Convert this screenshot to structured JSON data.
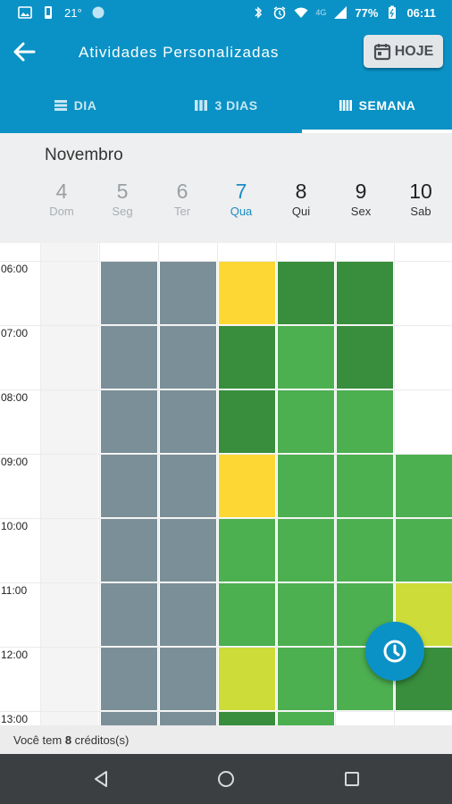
{
  "status_bar": {
    "temperature": "21°",
    "network": "4G",
    "battery": "77%",
    "time": "06:11",
    "icons": [
      "image-icon",
      "phone-icon",
      "circle-icon",
      "bluetooth-icon",
      "alarm-icon",
      "wifi-icon",
      "signal-icon",
      "battery-icon"
    ]
  },
  "app_bar": {
    "title": "Atividades Personalizadas",
    "today_button": "HOJE"
  },
  "tabs": [
    {
      "label": "DIA",
      "active": false
    },
    {
      "label": "3 DIAS",
      "active": false
    },
    {
      "label": "SEMANA",
      "active": true
    }
  ],
  "calendar": {
    "month": "Novembro",
    "days": [
      {
        "num": "4",
        "weekday": "Dom",
        "state": "past"
      },
      {
        "num": "5",
        "weekday": "Seg",
        "state": "past"
      },
      {
        "num": "6",
        "weekday": "Ter",
        "state": "past"
      },
      {
        "num": "7",
        "weekday": "Qua",
        "state": "today"
      },
      {
        "num": "8",
        "weekday": "Qui",
        "state": "future"
      },
      {
        "num": "9",
        "weekday": "Sex",
        "state": "future"
      },
      {
        "num": "10",
        "weekday": "Sab",
        "state": "future"
      }
    ],
    "hours": [
      "06:00",
      "07:00",
      "08:00",
      "09:00",
      "10:00",
      "11:00",
      "12:00",
      "13:00"
    ],
    "colors": {
      "gray": "#7b8f98",
      "yellow": "#fdd835",
      "dark_green": "#388e3c",
      "green": "#4caf50",
      "lime": "#cddc39",
      "accent": "#0a92c6"
    },
    "slots": {
      "Seg": [
        "gray",
        "gray",
        "gray",
        "gray",
        "gray",
        "gray",
        "gray",
        "gray"
      ],
      "Ter": [
        "gray",
        "gray",
        "gray",
        "gray",
        "gray",
        "gray",
        "gray",
        "gray"
      ],
      "Qua": [
        "yellow",
        "dark_green",
        "dark_green",
        "yellow",
        "green",
        "green",
        "lime",
        "dark_green"
      ],
      "Qui": [
        "dark_green",
        "green",
        "green",
        "green",
        "green",
        "green",
        "green",
        "green"
      ],
      "Sex": [
        "dark_green",
        "dark_green",
        "green",
        "green",
        "green",
        "green",
        "green",
        null
      ],
      "Sab": [
        null,
        null,
        null,
        "green",
        "green",
        "lime",
        "dark_green",
        null
      ]
    }
  },
  "footer": {
    "credits_prefix": "Você tem ",
    "credits_count": "8",
    "credits_suffix": " créditos(s)"
  },
  "navigation": {
    "icons": [
      "back-nav-icon",
      "home-nav-icon",
      "recents-nav-icon"
    ]
  }
}
